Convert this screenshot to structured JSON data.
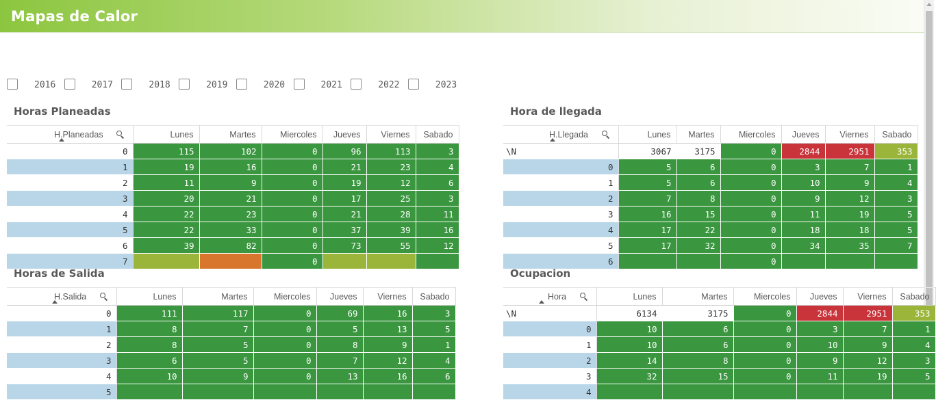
{
  "header": {
    "title": "Mapas de Calor"
  },
  "colors": {
    "green": "#3a963f",
    "olive": "#9ab53a",
    "orange": "#d9762d",
    "red": "#c8343a",
    "white": "#ffffff",
    "row_alt": "#b8d6e8"
  },
  "filters": {
    "years": [
      "2016",
      "2017",
      "2018",
      "2019",
      "2020",
      "2021",
      "2022",
      "2023"
    ]
  },
  "tables": [
    {
      "title": "Horas Planeadas",
      "dim_label": "H.Planeadas",
      "columns": [
        "Lunes",
        "Martes",
        "Miercoles",
        "Jueves",
        "Viernes",
        "Sabado"
      ],
      "rows": [
        {
          "key": "0",
          "values": [
            "115",
            "102",
            "0",
            "96",
            "113",
            "3"
          ],
          "colors": [
            "green",
            "green",
            "green",
            "green",
            "green",
            "green"
          ]
        },
        {
          "key": "1",
          "values": [
            "19",
            "16",
            "0",
            "21",
            "23",
            "4"
          ],
          "colors": [
            "green",
            "green",
            "green",
            "green",
            "green",
            "green"
          ]
        },
        {
          "key": "2",
          "values": [
            "11",
            "9",
            "0",
            "19",
            "12",
            "6"
          ],
          "colors": [
            "green",
            "green",
            "green",
            "green",
            "green",
            "green"
          ]
        },
        {
          "key": "3",
          "values": [
            "20",
            "21",
            "0",
            "17",
            "25",
            "3"
          ],
          "colors": [
            "green",
            "green",
            "green",
            "green",
            "green",
            "green"
          ]
        },
        {
          "key": "4",
          "values": [
            "22",
            "23",
            "0",
            "21",
            "28",
            "11"
          ],
          "colors": [
            "green",
            "green",
            "green",
            "green",
            "green",
            "green"
          ]
        },
        {
          "key": "5",
          "values": [
            "22",
            "33",
            "0",
            "37",
            "39",
            "16"
          ],
          "colors": [
            "green",
            "green",
            "green",
            "green",
            "green",
            "green"
          ]
        },
        {
          "key": "6",
          "values": [
            "39",
            "82",
            "0",
            "73",
            "55",
            "12"
          ],
          "colors": [
            "green",
            "green",
            "green",
            "green",
            "green",
            "green"
          ]
        },
        {
          "key": "7",
          "values": [
            "",
            "",
            "0",
            "",
            "",
            ""
          ],
          "colors": [
            "olive",
            "orange",
            "green",
            "olive",
            "olive",
            "green"
          ]
        }
      ]
    },
    {
      "title": "Hora de llegada",
      "dim_label": "H.Llegada",
      "columns": [
        "Lunes",
        "Martes",
        "Miercoles",
        "Jueves",
        "Viernes",
        "Sabado"
      ],
      "rows": [
        {
          "key": "\\N",
          "values": [
            "3067",
            "3175",
            "0",
            "2844",
            "2951",
            "353"
          ],
          "colors": [
            "white",
            "white",
            "green",
            "red",
            "red",
            "olive"
          ]
        },
        {
          "key": "0",
          "values": [
            "5",
            "6",
            "0",
            "3",
            "7",
            "1"
          ],
          "colors": [
            "green",
            "green",
            "green",
            "green",
            "green",
            "green"
          ]
        },
        {
          "key": "1",
          "values": [
            "5",
            "6",
            "0",
            "10",
            "9",
            "4"
          ],
          "colors": [
            "green",
            "green",
            "green",
            "green",
            "green",
            "green"
          ]
        },
        {
          "key": "2",
          "values": [
            "7",
            "8",
            "0",
            "9",
            "12",
            "3"
          ],
          "colors": [
            "green",
            "green",
            "green",
            "green",
            "green",
            "green"
          ]
        },
        {
          "key": "3",
          "values": [
            "16",
            "15",
            "0",
            "11",
            "19",
            "5"
          ],
          "colors": [
            "green",
            "green",
            "green",
            "green",
            "green",
            "green"
          ]
        },
        {
          "key": "4",
          "values": [
            "17",
            "22",
            "0",
            "18",
            "18",
            "5"
          ],
          "colors": [
            "green",
            "green",
            "green",
            "green",
            "green",
            "green"
          ]
        },
        {
          "key": "5",
          "values": [
            "17",
            "32",
            "0",
            "34",
            "35",
            "7"
          ],
          "colors": [
            "green",
            "green",
            "green",
            "green",
            "green",
            "green"
          ]
        },
        {
          "key": "6",
          "values": [
            "",
            "",
            "0",
            "",
            "",
            ""
          ],
          "colors": [
            "green",
            "green",
            "green",
            "green",
            "green",
            "green"
          ]
        }
      ]
    },
    {
      "title": "Horas de Salida",
      "dim_label": "H.Salida",
      "columns": [
        "Lunes",
        "Martes",
        "Miercoles",
        "Jueves",
        "Viernes",
        "Sabado"
      ],
      "rows": [
        {
          "key": "0",
          "values": [
            "111",
            "117",
            "0",
            "69",
            "16",
            "3"
          ],
          "colors": [
            "green",
            "green",
            "green",
            "green",
            "green",
            "green"
          ]
        },
        {
          "key": "1",
          "values": [
            "8",
            "7",
            "0",
            "5",
            "13",
            "5"
          ],
          "colors": [
            "green",
            "green",
            "green",
            "green",
            "green",
            "green"
          ]
        },
        {
          "key": "2",
          "values": [
            "8",
            "5",
            "0",
            "8",
            "9",
            "1"
          ],
          "colors": [
            "green",
            "green",
            "green",
            "green",
            "green",
            "green"
          ]
        },
        {
          "key": "3",
          "values": [
            "6",
            "5",
            "0",
            "7",
            "12",
            "4"
          ],
          "colors": [
            "green",
            "green",
            "green",
            "green",
            "green",
            "green"
          ]
        },
        {
          "key": "4",
          "values": [
            "10",
            "9",
            "0",
            "13",
            "16",
            "6"
          ],
          "colors": [
            "green",
            "green",
            "green",
            "green",
            "green",
            "green"
          ]
        },
        {
          "key": "5",
          "values": [
            "",
            "",
            "",
            "",
            "",
            ""
          ],
          "colors": [
            "green",
            "green",
            "green",
            "green",
            "green",
            "green"
          ]
        }
      ]
    },
    {
      "title": "Ocupacion",
      "dim_label": "Hora",
      "columns": [
        "Lunes",
        "Martes",
        "Miercoles",
        "Jueves",
        "Viernes",
        "Sabado"
      ],
      "rows": [
        {
          "key": "\\N",
          "values": [
            "6134",
            "3175",
            "0",
            "2844",
            "2951",
            "353"
          ],
          "colors": [
            "white",
            "white",
            "green",
            "red",
            "red",
            "olive"
          ]
        },
        {
          "key": "0",
          "values": [
            "10",
            "6",
            "0",
            "3",
            "7",
            "1"
          ],
          "colors": [
            "green",
            "green",
            "green",
            "green",
            "green",
            "green"
          ]
        },
        {
          "key": "1",
          "values": [
            "10",
            "6",
            "0",
            "10",
            "9",
            "4"
          ],
          "colors": [
            "green",
            "green",
            "green",
            "green",
            "green",
            "green"
          ]
        },
        {
          "key": "2",
          "values": [
            "14",
            "8",
            "0",
            "9",
            "12",
            "3"
          ],
          "colors": [
            "green",
            "green",
            "green",
            "green",
            "green",
            "green"
          ]
        },
        {
          "key": "3",
          "values": [
            "32",
            "15",
            "0",
            "11",
            "19",
            "5"
          ],
          "colors": [
            "green",
            "green",
            "green",
            "green",
            "green",
            "green"
          ]
        },
        {
          "key": "4",
          "values": [
            "",
            "",
            "",
            "",
            "",
            ""
          ],
          "colors": [
            "green",
            "green",
            "green",
            "green",
            "green",
            "green"
          ]
        }
      ]
    }
  ]
}
